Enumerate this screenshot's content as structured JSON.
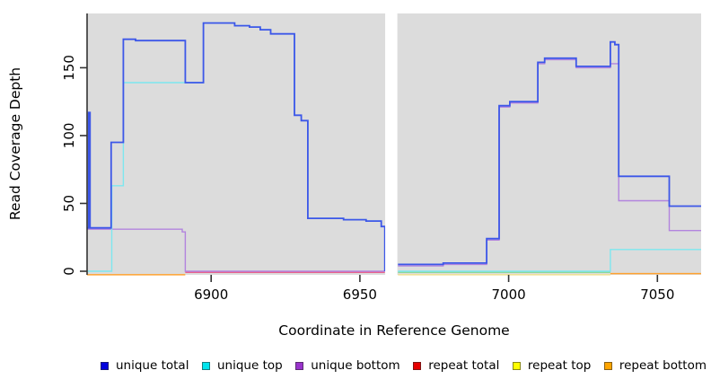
{
  "figure": {
    "y_axis_label": "Read Coverage Depth",
    "x_axis_label": "Coordinate in Reference Genome"
  },
  "legend": {
    "items": [
      {
        "label": "unique total",
        "color": "#0000dd"
      },
      {
        "label": "unique top",
        "color": "#00e5ee"
      },
      {
        "label": "unique bottom",
        "color": "#9933cc"
      },
      {
        "label": "repeat total",
        "color": "#e60000"
      },
      {
        "label": "repeat top",
        "color": "#ffff00"
      },
      {
        "label": "repeat bottom",
        "color": "#ffa500"
      }
    ]
  },
  "chart_data": {
    "type": "line",
    "subtype": "step-coverage",
    "title": "",
    "xlabel": "Coordinate in Reference Genome",
    "ylabel": "Read Coverage Depth",
    "xlim": [
      6858.3,
      7064.7
    ],
    "ylim": [
      0,
      190
    ],
    "x_ticks": [
      6900,
      6950,
      7000,
      7050
    ],
    "y_ticks": [
      0,
      50,
      100,
      150
    ],
    "grid": false,
    "legend_position": "bottom",
    "panel_background": "#dcdcdc",
    "axis_color": "#333333",
    "gap_region": {
      "from": 6958.5,
      "to": 6962.6
    },
    "series": [
      {
        "name": "unique total",
        "color": "#3d57e8",
        "width": 1.8,
        "segments": [
          [
            [
              6858.3,
              32
            ],
            [
              6858.8,
              117
            ],
            [
              6859.3,
              32
            ],
            [
              6866.4,
              95
            ],
            [
              6870.5,
              171
            ],
            [
              6874.6,
              170
            ],
            [
              6891.3,
              139
            ],
            [
              6897.4,
              183
            ],
            [
              6907.9,
              181
            ],
            [
              6912.9,
              180
            ],
            [
              6916.5,
              178
            ],
            [
              6920,
              175
            ],
            [
              6928,
              115
            ],
            [
              6930.3,
              111
            ],
            [
              6932.5,
              39
            ],
            [
              6944.5,
              38
            ],
            [
              6952.1,
              37
            ],
            [
              6957.2,
              33
            ],
            [
              6958.4,
              0
            ]
          ],
          [
            [
              6962.8,
              5
            ],
            [
              6978,
              6
            ],
            [
              6992.6,
              24
            ],
            [
              6996.8,
              122
            ],
            [
              7000.4,
              125
            ],
            [
              7009.8,
              154
            ],
            [
              7012.1,
              157
            ],
            [
              7022.7,
              151
            ],
            [
              7034.2,
              169
            ],
            [
              7035.7,
              167
            ],
            [
              7037,
              70
            ],
            [
              7054,
              48
            ],
            [
              7064.7,
              48
            ]
          ]
        ]
      },
      {
        "name": "unique top",
        "color": "#7de7ef",
        "width": 1.4,
        "segments": [
          [
            [
              6858.3,
              0
            ],
            [
              6866.6,
              63
            ],
            [
              6870.5,
              139
            ],
            [
              6897.4,
              183
            ],
            [
              6907.9,
              181
            ],
            [
              6912.9,
              180
            ],
            [
              6916.5,
              178
            ],
            [
              6920,
              175
            ],
            [
              6928,
              115
            ],
            [
              6930.3,
              111
            ],
            [
              6932.5,
              39
            ],
            [
              6944.5,
              38
            ],
            [
              6952.1,
              37
            ],
            [
              6957.2,
              33
            ],
            [
              6958.4,
              0
            ]
          ],
          [
            [
              6962.8,
              0
            ],
            [
              7034.2,
              16
            ],
            [
              7064.7,
              16
            ]
          ]
        ]
      },
      {
        "name": "unique bottom",
        "color": "#b284de",
        "width": 1.4,
        "segments": [
          [
            [
              6858.3,
              31
            ],
            [
              6890.3,
              29
            ],
            [
              6891.3,
              0
            ],
            [
              6958.4,
              0
            ]
          ],
          [
            [
              6962.8,
              4
            ],
            [
              6978,
              5
            ],
            [
              6992.6,
              23
            ],
            [
              6996.8,
              121
            ],
            [
              7000.4,
              124
            ],
            [
              7009.8,
              153
            ],
            [
              7012.1,
              156
            ],
            [
              7022.7,
              150
            ],
            [
              7034.2,
              153
            ],
            [
              7037,
              52
            ],
            [
              7054,
              30
            ],
            [
              7064.7,
              30
            ]
          ]
        ]
      },
      {
        "name": "repeat total",
        "color": "#e8638c",
        "width": 1.2,
        "segments": [
          [
            [
              6858.3,
              0
            ],
            [
              6958.4,
              0
            ]
          ],
          [
            [
              6962.8,
              0
            ],
            [
              7064.7,
              0
            ]
          ]
        ]
      },
      {
        "name": "repeat top",
        "color": "#f0e090",
        "width": 1.2,
        "segments": [
          [
            [
              6858.3,
              0
            ],
            [
              6958.4,
              0
            ]
          ],
          [
            [
              6962.8,
              0
            ],
            [
              7064.7,
              0
            ]
          ]
        ]
      },
      {
        "name": "repeat bottom",
        "color": "#ffa230",
        "width": 1.5,
        "segments": [
          [
            [
              6858.3,
              0
            ],
            [
              6958.4,
              0
            ]
          ],
          [
            [
              6962.8,
              0
            ],
            [
              7064.7,
              0
            ]
          ]
        ]
      }
    ],
    "baseline_visible_segments": [
      {
        "from": 6858.3,
        "to": 6891.3,
        "color": "#ffa230",
        "row": 2
      },
      {
        "from": 6891.3,
        "to": 6958.4,
        "color": "#e8638c",
        "row": 0
      },
      {
        "from": 6962.8,
        "to": 7034.2,
        "color": "#f0e090",
        "row": 2
      },
      {
        "from": 6962.8,
        "to": 7034.2,
        "color": "#8fd79a",
        "row": 0
      },
      {
        "from": 7034.2,
        "to": 7064.7,
        "color": "#ffa230",
        "row": 1
      }
    ]
  }
}
